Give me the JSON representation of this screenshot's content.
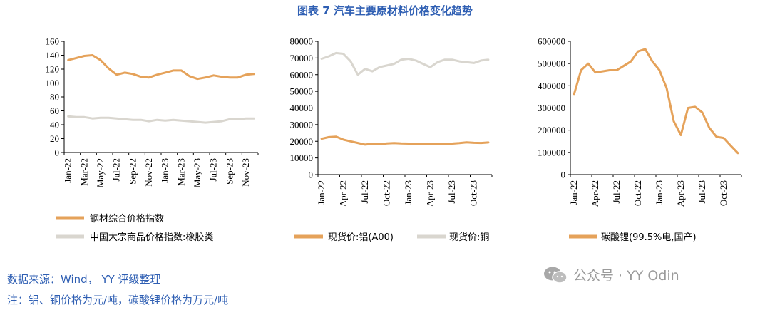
{
  "title": "图表 7 汽车主要原材料价格变化趋势",
  "source": "数据来源：Wind， YY 评级整理",
  "note": "注：铝、铜价格为元/吨，碳酸锂价格为万元/吨",
  "watermark": {
    "text": "公众号 · YY Odin",
    "icon": "wechat-icon"
  },
  "colors": {
    "orange": "#e5a25a",
    "gray": "#d9d6cf",
    "axis": "#000000",
    "title": "#2f5fb3"
  },
  "chart_data": [
    {
      "type": "line",
      "ylim": [
        0,
        160
      ],
      "yticks": [
        0,
        20,
        40,
        60,
        80,
        100,
        120,
        140,
        160
      ],
      "categories": [
        "Jan-22",
        "Mar-22",
        "May-22",
        "Jul-22",
        "Sep-22",
        "Nov-22",
        "Jan-23",
        "Mar-23",
        "May-23",
        "Jul-23",
        "Sep-23",
        "Nov-23"
      ],
      "series": [
        {
          "name": "钢材综合价格指数",
          "color": "#e5a25a",
          "x": [
            0,
            1,
            2,
            3,
            4,
            5,
            6,
            7,
            8,
            9,
            10,
            11,
            12,
            13,
            14,
            15,
            16,
            17,
            18,
            19,
            20,
            21,
            22,
            23
          ],
          "values": [
            133,
            136,
            139,
            140,
            133,
            121,
            112,
            115,
            113,
            109,
            108,
            112,
            115,
            118,
            118,
            110,
            106,
            108,
            111,
            109,
            108,
            108,
            112,
            113
          ]
        },
        {
          "name": "中国大宗商品价格指数:橡胶类",
          "color": "#d9d6cf",
          "x": [
            0,
            1,
            2,
            3,
            4,
            5,
            6,
            7,
            8,
            9,
            10,
            11,
            12,
            13,
            14,
            15,
            16,
            17,
            18,
            19,
            20,
            21,
            22,
            23
          ],
          "values": [
            52,
            51,
            51,
            49,
            50,
            50,
            49,
            48,
            47,
            47,
            45,
            47,
            46,
            47,
            46,
            45,
            44,
            43,
            44,
            45,
            48,
            48,
            49,
            49
          ]
        }
      ]
    },
    {
      "type": "line",
      "ylim": [
        0,
        80000
      ],
      "yticks": [
        0,
        10000,
        20000,
        30000,
        40000,
        50000,
        60000,
        70000,
        80000
      ],
      "categories": [
        "Jan-22",
        "Apr-22",
        "Jul-22",
        "Oct-22",
        "Jan-23",
        "Apr-23",
        "Jul-23",
        "Oct-23"
      ],
      "series": [
        {
          "name": "现货价:铝(A00)",
          "color": "#e5a25a",
          "x": [
            0,
            1,
            2,
            3,
            4,
            5,
            6,
            7,
            8,
            9,
            10,
            11,
            12,
            13,
            14,
            15,
            16,
            17,
            18,
            19,
            20,
            21,
            22,
            23
          ],
          "values": [
            21500,
            22500,
            22800,
            21000,
            20000,
            19000,
            18000,
            18500,
            18200,
            18700,
            18900,
            18700,
            18600,
            18500,
            18600,
            18400,
            18300,
            18500,
            18600,
            18900,
            19400,
            19100,
            19000,
            19300
          ]
        },
        {
          "name": "现货价:铜",
          "color": "#d9d6cf",
          "x": [
            0,
            1,
            2,
            3,
            4,
            5,
            6,
            7,
            8,
            9,
            10,
            11,
            12,
            13,
            14,
            15,
            16,
            17,
            18,
            19,
            20,
            21,
            22,
            23
          ],
          "values": [
            69500,
            71000,
            73000,
            72500,
            68000,
            60000,
            63500,
            62000,
            64500,
            65500,
            66500,
            69000,
            69500,
            68500,
            66500,
            64500,
            67500,
            69000,
            69000,
            68000,
            67500,
            67000,
            68500,
            69000
          ]
        }
      ]
    },
    {
      "type": "line",
      "ylim": [
        0,
        600000
      ],
      "yticks": [
        0,
        100000,
        200000,
        300000,
        400000,
        500000,
        600000
      ],
      "categories": [
        "Jan-22",
        "Apr-22",
        "Jul-22",
        "Oct-22",
        "Jan-23",
        "Apr-23",
        "Jul-23",
        "Oct-23"
      ],
      "series": [
        {
          "name": "碳酸锂(99.5%电,国产)",
          "color": "#e5a25a",
          "x": [
            0,
            1,
            2,
            3,
            4,
            5,
            6,
            7,
            8,
            9,
            10,
            11,
            12,
            13,
            14,
            15,
            16,
            17,
            18,
            19,
            20,
            21,
            22,
            23
          ],
          "values": [
            360000,
            470000,
            500000,
            460000,
            465000,
            470000,
            470000,
            490000,
            510000,
            555000,
            565000,
            510000,
            470000,
            390000,
            240000,
            178000,
            300000,
            305000,
            280000,
            210000,
            170000,
            165000,
            130000,
            97000
          ]
        }
      ]
    }
  ]
}
